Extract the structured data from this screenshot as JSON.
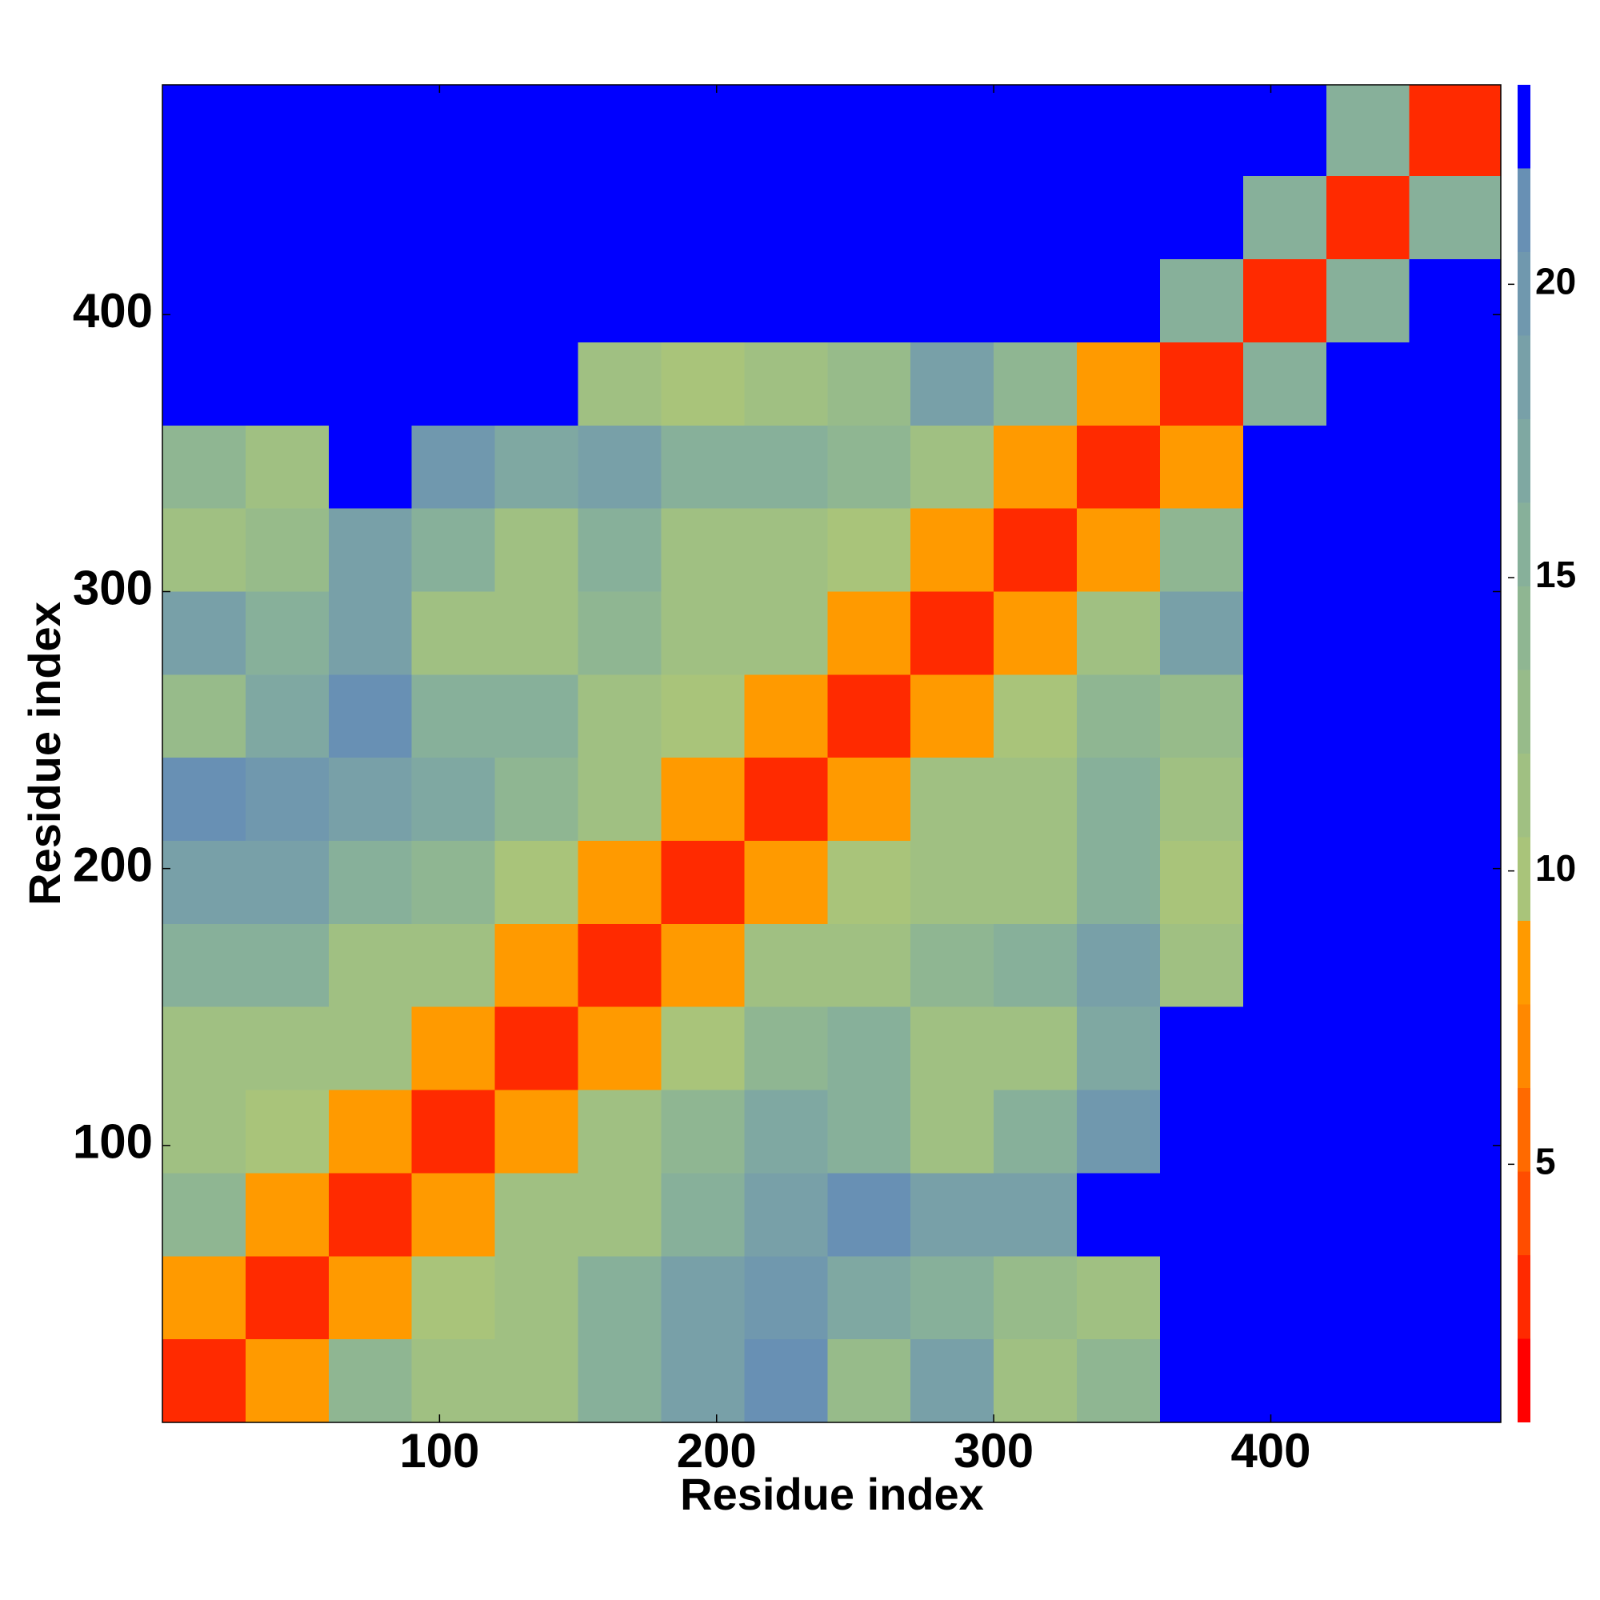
{
  "chart_data": {
    "type": "heatmap",
    "x_label": "Residue index",
    "y_label": "Residue index",
    "xlim": [
      0,
      483
    ],
    "ylim": [
      0,
      483
    ],
    "xticks": [
      100,
      200,
      300,
      400
    ],
    "yticks": [
      100,
      200,
      300,
      400
    ],
    "x_bins": [
      0,
      30,
      60,
      90,
      120,
      150,
      180,
      210,
      240,
      270,
      300,
      330,
      360,
      390,
      420,
      450,
      483
    ],
    "y_bins": [
      0,
      30,
      60,
      90,
      120,
      150,
      180,
      210,
      240,
      270,
      300,
      330,
      360,
      390,
      420,
      450,
      483
    ],
    "z": [
      [
        3,
        9,
        14,
        11,
        12,
        16,
        19,
        21,
        13,
        18,
        11,
        14,
        23,
        23,
        23,
        23
      ],
      [
        9,
        3,
        9,
        10,
        12,
        15,
        18,
        20,
        17,
        16,
        13,
        12,
        23,
        23,
        23,
        23
      ],
      [
        14,
        9,
        3,
        8,
        11,
        12,
        16,
        19,
        21,
        19,
        18,
        22,
        23,
        23,
        23,
        23
      ],
      [
        11,
        10,
        8,
        3,
        8,
        11,
        14,
        17,
        16,
        12,
        15,
        20,
        23,
        23,
        23,
        23
      ],
      [
        12,
        12,
        11,
        8,
        3,
        8,
        10,
        14,
        15,
        12,
        11,
        17,
        23,
        23,
        23,
        23
      ],
      [
        16,
        15,
        12,
        11,
        8,
        3,
        8,
        11,
        12,
        14,
        15,
        18,
        12,
        23,
        23,
        23
      ],
      [
        19,
        18,
        16,
        14,
        10,
        8,
        3,
        8,
        10,
        12,
        12,
        16,
        10,
        23,
        23,
        23
      ],
      [
        21,
        20,
        19,
        17,
        14,
        11,
        8,
        3,
        8,
        11,
        12,
        16,
        11,
        23,
        23,
        23
      ],
      [
        13,
        17,
        21,
        16,
        15,
        12,
        10,
        8,
        3,
        8,
        10,
        14,
        13,
        23,
        23,
        23
      ],
      [
        18,
        16,
        19,
        12,
        12,
        14,
        12,
        11,
        8,
        3,
        8,
        11,
        19,
        23,
        23,
        23
      ],
      [
        11,
        13,
        18,
        15,
        11,
        15,
        12,
        12,
        10,
        8,
        3,
        8,
        14,
        23,
        23,
        23
      ],
      [
        14,
        12,
        22,
        20,
        17,
        18,
        16,
        16,
        14,
        11,
        8,
        3,
        9,
        23,
        23,
        23
      ],
      [
        23,
        23,
        23,
        23,
        23,
        12,
        10,
        11,
        13,
        19,
        14,
        9,
        3,
        15,
        23,
        23
      ],
      [
        23,
        23,
        23,
        23,
        23,
        23,
        23,
        23,
        23,
        23,
        23,
        23,
        15,
        3,
        16,
        23
      ],
      [
        23,
        23,
        23,
        23,
        23,
        23,
        23,
        23,
        23,
        23,
        23,
        23,
        23,
        16,
        3,
        16
      ],
      [
        23,
        23,
        23,
        23,
        23,
        23,
        23,
        23,
        23,
        23,
        23,
        23,
        23,
        23,
        16,
        3
      ]
    ],
    "colorbar": {
      "lim": [
        0.6,
        23.4
      ],
      "ticks": [
        5,
        10,
        15,
        20
      ],
      "levels": [
        0.6,
        2.025,
        3.45,
        4.875,
        6.3,
        7.725,
        9.15,
        10.575,
        12.0,
        13.425,
        14.85,
        16.275,
        17.7,
        19.125,
        20.55,
        21.975,
        23.4
      ],
      "colors": [
        "#ff0000",
        "#ff2a00",
        "#ff4d00",
        "#ff6a00",
        "#ff8800",
        "#ff9a00",
        "#a9c47a",
        "#a0c082",
        "#97bb8a",
        "#8fb692",
        "#87b09a",
        "#7fa8a2",
        "#78a0a8",
        "#7098ae",
        "#6890b4",
        "#0000ff"
      ]
    }
  }
}
